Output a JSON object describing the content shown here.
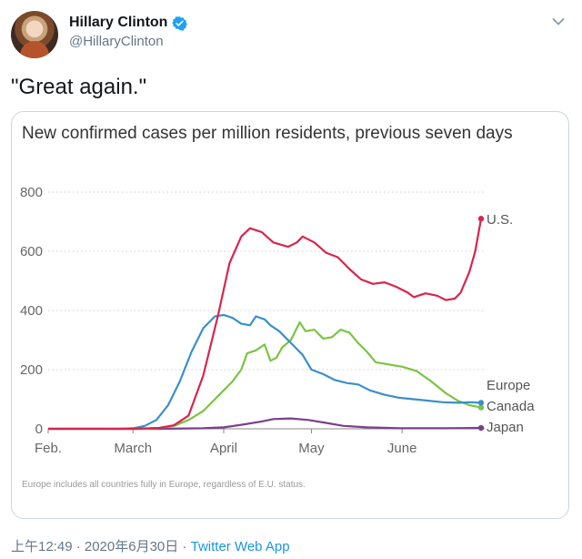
{
  "tweet": {
    "author_name": "Hillary Clinton",
    "handle": "@HillaryClinton",
    "text": "\"Great again.\"",
    "timestamp": "上午12:49 · 2020年6月30日",
    "separator": " · ",
    "source": "Twitter Web App"
  },
  "icons": {
    "avatar": "avatar-photo",
    "verified": "verified-badge-icon",
    "more": "chevron-down-icon"
  },
  "colors": {
    "verified_blue": "#1da1f2",
    "link_blue": "#1b95e0",
    "us": "#d9254c",
    "europe": "#3a8fc9",
    "canada": "#7ac443",
    "japan": "#7b3f8e"
  },
  "chart_data": {
    "type": "line",
    "title": "New confirmed cases per million residents, previous seven days",
    "footnote": "Europe includes all countries fully in Europe, regardless of E.U. status.",
    "xlabel": "",
    "ylabel": "",
    "ylim": [
      0,
      800
    ],
    "xlim": [
      "2020-02-01",
      "2020-06-28"
    ],
    "yticks": [
      0,
      200,
      400,
      600,
      800
    ],
    "xticks": [
      {
        "label": "Feb.",
        "date": "2020-02-01"
      },
      {
        "label": "March",
        "date": "2020-03-01"
      },
      {
        "label": "April",
        "date": "2020-04-01"
      },
      {
        "label": "May",
        "date": "2020-05-01"
      },
      {
        "label": "June",
        "date": "2020-06-01"
      }
    ],
    "grid": "horizontal-dotted",
    "series": [
      {
        "name": "U.S.",
        "color": "#d9254c",
        "points": [
          [
            "2020-02-01",
            0
          ],
          [
            "2020-03-01",
            0
          ],
          [
            "2020-03-10",
            3
          ],
          [
            "2020-03-15",
            12
          ],
          [
            "2020-03-20",
            45
          ],
          [
            "2020-03-25",
            180
          ],
          [
            "2020-03-30",
            380
          ],
          [
            "2020-04-03",
            560
          ],
          [
            "2020-04-07",
            650
          ],
          [
            "2020-04-10",
            678
          ],
          [
            "2020-04-14",
            665
          ],
          [
            "2020-04-18",
            630
          ],
          [
            "2020-04-23",
            615
          ],
          [
            "2020-04-26",
            630
          ],
          [
            "2020-04-28",
            650
          ],
          [
            "2020-05-02",
            630
          ],
          [
            "2020-05-06",
            595
          ],
          [
            "2020-05-10",
            580
          ],
          [
            "2020-05-14",
            540
          ],
          [
            "2020-05-18",
            505
          ],
          [
            "2020-05-22",
            490
          ],
          [
            "2020-05-26",
            495
          ],
          [
            "2020-05-30",
            480
          ],
          [
            "2020-06-03",
            460
          ],
          [
            "2020-06-05",
            445
          ],
          [
            "2020-06-09",
            458
          ],
          [
            "2020-06-13",
            450
          ],
          [
            "2020-06-16",
            435
          ],
          [
            "2020-06-19",
            440
          ],
          [
            "2020-06-21",
            460
          ],
          [
            "2020-06-24",
            530
          ],
          [
            "2020-06-26",
            600
          ],
          [
            "2020-06-28",
            710
          ]
        ]
      },
      {
        "name": "Europe",
        "color": "#3a8fc9",
        "points": [
          [
            "2020-02-01",
            0
          ],
          [
            "2020-02-25",
            0
          ],
          [
            "2020-03-01",
            2
          ],
          [
            "2020-03-05",
            10
          ],
          [
            "2020-03-09",
            30
          ],
          [
            "2020-03-13",
            80
          ],
          [
            "2020-03-17",
            160
          ],
          [
            "2020-03-21",
            260
          ],
          [
            "2020-03-25",
            340
          ],
          [
            "2020-03-29",
            380
          ],
          [
            "2020-04-01",
            385
          ],
          [
            "2020-04-04",
            375
          ],
          [
            "2020-04-07",
            355
          ],
          [
            "2020-04-10",
            350
          ],
          [
            "2020-04-12",
            380
          ],
          [
            "2020-04-15",
            370
          ],
          [
            "2020-04-17",
            350
          ],
          [
            "2020-04-20",
            330
          ],
          [
            "2020-04-22",
            310
          ],
          [
            "2020-04-25",
            280
          ],
          [
            "2020-04-28",
            250
          ],
          [
            "2020-05-01",
            200
          ],
          [
            "2020-05-05",
            185
          ],
          [
            "2020-05-09",
            165
          ],
          [
            "2020-05-13",
            155
          ],
          [
            "2020-05-17",
            150
          ],
          [
            "2020-05-21",
            130
          ],
          [
            "2020-05-26",
            115
          ],
          [
            "2020-05-31",
            105
          ],
          [
            "2020-06-05",
            100
          ],
          [
            "2020-06-10",
            95
          ],
          [
            "2020-06-15",
            90
          ],
          [
            "2020-06-20",
            88
          ],
          [
            "2020-06-24",
            90
          ],
          [
            "2020-06-28",
            88
          ]
        ]
      },
      {
        "name": "Canada",
        "color": "#7ac443",
        "points": [
          [
            "2020-02-01",
            0
          ],
          [
            "2020-03-05",
            0
          ],
          [
            "2020-03-10",
            3
          ],
          [
            "2020-03-15",
            10
          ],
          [
            "2020-03-20",
            30
          ],
          [
            "2020-03-25",
            60
          ],
          [
            "2020-03-30",
            110
          ],
          [
            "2020-04-04",
            160
          ],
          [
            "2020-04-07",
            200
          ],
          [
            "2020-04-09",
            255
          ],
          [
            "2020-04-12",
            265
          ],
          [
            "2020-04-15",
            285
          ],
          [
            "2020-04-17",
            230
          ],
          [
            "2020-04-19",
            240
          ],
          [
            "2020-04-21",
            275
          ],
          [
            "2020-04-24",
            300
          ],
          [
            "2020-04-27",
            360
          ],
          [
            "2020-04-29",
            330
          ],
          [
            "2020-05-02",
            335
          ],
          [
            "2020-05-05",
            305
          ],
          [
            "2020-05-08",
            310
          ],
          [
            "2020-05-11",
            335
          ],
          [
            "2020-05-14",
            325
          ],
          [
            "2020-05-17",
            290
          ],
          [
            "2020-05-20",
            260
          ],
          [
            "2020-05-23",
            225
          ],
          [
            "2020-05-27",
            218
          ],
          [
            "2020-06-01",
            210
          ],
          [
            "2020-06-06",
            195
          ],
          [
            "2020-06-11",
            160
          ],
          [
            "2020-06-16",
            120
          ],
          [
            "2020-06-20",
            95
          ],
          [
            "2020-06-24",
            80
          ],
          [
            "2020-06-28",
            72
          ]
        ]
      },
      {
        "name": "Japan",
        "color": "#7b3f8e",
        "points": [
          [
            "2020-02-01",
            0
          ],
          [
            "2020-03-10",
            0
          ],
          [
            "2020-03-25",
            2
          ],
          [
            "2020-04-01",
            5
          ],
          [
            "2020-04-08",
            15
          ],
          [
            "2020-04-14",
            25
          ],
          [
            "2020-04-18",
            33
          ],
          [
            "2020-04-24",
            35
          ],
          [
            "2020-04-30",
            30
          ],
          [
            "2020-05-06",
            20
          ],
          [
            "2020-05-12",
            10
          ],
          [
            "2020-05-20",
            5
          ],
          [
            "2020-05-31",
            2
          ],
          [
            "2020-06-15",
            2
          ],
          [
            "2020-06-28",
            3
          ]
        ]
      }
    ]
  }
}
